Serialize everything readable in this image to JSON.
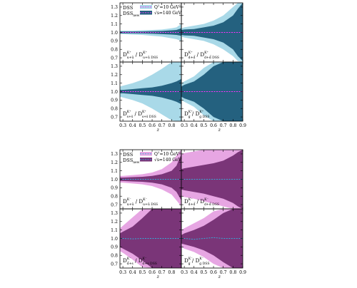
{
  "chart_data": [
    {
      "type": "area",
      "x_ticks": [
        "0.3",
        "0.4",
        "0.5",
        "0.6",
        "0.7",
        "0.8",
        "0.9"
      ],
      "y_ticks": [
        "0.7",
        "0.8",
        "0.9",
        "1.0",
        "1.1",
        "1.2",
        "1.3"
      ],
      "ylim": [
        0.65,
        1.35
      ],
      "xlim": [
        0.27,
        0.9
      ],
      "xlabel": "z",
      "legend": {
        "placement": "top-left",
        "label_dss": "DSS",
        "label_dssnew": "DSS",
        "label_dssnew_sub": "new",
        "entry_light": "Q",
        "entry_light_sup": "2",
        "entry_light_rest": "=10 GeV",
        "entry_light_rest_sup": "2",
        "entry_dark": "√s=140 GeV"
      },
      "colors": {
        "light": "#a9d9e8",
        "dark": "#24617f",
        "line": "#ff33ff"
      },
      "panels": [
        {
          "label_lead": "D",
          "label_sup": "K⁺",
          "label_sub": "u+ū",
          "label_sep": " / D",
          "label_sup2": "K⁺",
          "label_sub2": "u+ū DSS",
          "x": [
            0.27,
            0.3,
            0.4,
            0.5,
            0.6,
            0.7,
            0.8,
            0.85,
            0.9
          ],
          "light_upper": [
            1.02,
            1.02,
            1.02,
            1.025,
            1.03,
            1.035,
            1.05,
            1.06,
            1.1
          ],
          "light_lower": [
            0.98,
            0.98,
            0.975,
            0.97,
            0.96,
            0.95,
            0.93,
            0.92,
            0.9
          ],
          "dark_upper": [
            1.01,
            1.01,
            1.01,
            1.012,
            1.015,
            1.018,
            1.025,
            1.03,
            1.05
          ],
          "dark_lower": [
            0.99,
            0.99,
            0.99,
            0.988,
            0.985,
            0.98,
            0.975,
            0.97,
            0.96
          ],
          "central": [
            1.0,
            1.0,
            1.0,
            1.0,
            1.0,
            1.0,
            1.0,
            1.0,
            1.0
          ]
        },
        {
          "label_lead": "D",
          "label_sup": "K⁺",
          "label_sub": "d+d̅",
          "label_sep": " / D",
          "label_sup2": "K⁺",
          "label_sub2": "d+d̅ DSS",
          "x": [
            0.27,
            0.3,
            0.4,
            0.5,
            0.6,
            0.7,
            0.8,
            0.85,
            0.9
          ],
          "light_upper": [
            1.05,
            1.06,
            1.08,
            1.1,
            1.14,
            1.2,
            1.3,
            1.35,
            1.35
          ],
          "light_lower": [
            0.95,
            0.94,
            0.92,
            0.9,
            0.86,
            0.8,
            0.72,
            0.66,
            0.65
          ],
          "dark_upper": [
            1.03,
            1.035,
            1.04,
            1.06,
            1.08,
            1.12,
            1.2,
            1.28,
            1.35
          ],
          "dark_lower": [
            0.97,
            0.965,
            0.96,
            0.94,
            0.92,
            0.88,
            0.8,
            0.72,
            0.66
          ],
          "central": [
            1.0,
            1.0,
            1.0,
            1.0,
            1.0,
            1.0,
            1.0,
            1.0,
            1.0
          ]
        },
        {
          "label_lead": "D",
          "label_sup": "K⁺",
          "label_sub": "s+s̅",
          "label_sep": " / D",
          "label_sup2": "K⁺",
          "label_sub2": "s+s̅ DSS",
          "x": [
            0.27,
            0.3,
            0.4,
            0.5,
            0.6,
            0.7,
            0.8,
            0.85,
            0.9
          ],
          "light_upper": [
            1.06,
            1.07,
            1.1,
            1.14,
            1.2,
            1.27,
            1.35,
            1.35,
            1.35
          ],
          "light_lower": [
            0.94,
            0.93,
            0.9,
            0.86,
            0.8,
            0.73,
            0.66,
            0.65,
            0.65
          ],
          "dark_upper": [
            1.02,
            1.02,
            1.03,
            1.04,
            1.05,
            1.07,
            1.1,
            1.12,
            1.15
          ],
          "dark_lower": [
            0.98,
            0.98,
            0.97,
            0.96,
            0.95,
            0.93,
            0.9,
            0.88,
            0.85
          ],
          "central": [
            1.0,
            1.0,
            1.0,
            1.0,
            1.0,
            1.0,
            1.0,
            1.0,
            1.0
          ]
        },
        {
          "label_lead": "D",
          "label_sup": "K⁺",
          "label_sub": "g",
          "label_sep": " / D",
          "label_sup2": "K⁺",
          "label_sub2": "g DSS",
          "x": [
            0.27,
            0.3,
            0.4,
            0.5,
            0.6,
            0.7,
            0.8,
            0.85,
            0.9
          ],
          "light_upper": [
            1.1,
            1.12,
            1.18,
            1.28,
            1.35,
            1.35,
            1.35,
            1.35,
            1.35
          ],
          "light_lower": [
            0.9,
            0.88,
            0.82,
            0.72,
            0.65,
            0.65,
            0.65,
            0.65,
            0.65
          ],
          "dark_upper": [
            1.06,
            1.08,
            1.12,
            1.2,
            1.3,
            1.35,
            1.35,
            1.35,
            1.35
          ],
          "dark_lower": [
            0.94,
            0.92,
            0.88,
            0.8,
            0.7,
            0.65,
            0.65,
            0.65,
            0.65
          ],
          "central": [
            1.0,
            1.0,
            1.0,
            1.0,
            1.0,
            1.0,
            1.0,
            1.0,
            1.0
          ]
        }
      ]
    },
    {
      "type": "area",
      "x_ticks": [
        "0.3",
        "0.4",
        "0.5",
        "0.6",
        "0.7",
        "0.8",
        "0.9"
      ],
      "y_ticks": [
        "0.7",
        "0.8",
        "0.9",
        "1.0",
        "1.1",
        "1.2",
        "1.3"
      ],
      "ylim": [
        0.65,
        1.35
      ],
      "xlim": [
        0.27,
        0.9
      ],
      "xlabel": "z",
      "legend": {
        "placement": "top-left",
        "label_dss": "DSS",
        "label_dssnew": "DSS",
        "label_dssnew_sub": "new",
        "entry_light": "Q",
        "entry_light_sup": "2",
        "entry_light_rest": "=10 GeV",
        "entry_light_rest_sup": "2",
        "entry_dark": "√s=140 GeV"
      },
      "colors": {
        "light": "#e7a6e3",
        "dark": "#7a3578",
        "line": "#35a9d6"
      },
      "panels": [
        {
          "label_lead": "D",
          "label_sup": "K⁻",
          "label_sub": "u+ū",
          "label_sep": " / D",
          "label_sup2": "K⁻",
          "label_sub2": "u+ū DSS",
          "x": [
            0.27,
            0.3,
            0.4,
            0.5,
            0.6,
            0.7,
            0.8,
            0.85,
            0.9
          ],
          "light_upper": [
            1.04,
            1.04,
            1.05,
            1.06,
            1.08,
            1.12,
            1.2,
            1.28,
            1.35
          ],
          "light_lower": [
            0.96,
            0.96,
            0.95,
            0.94,
            0.92,
            0.88,
            0.82,
            0.75,
            0.68
          ],
          "dark_upper": [
            1.02,
            1.02,
            1.025,
            1.03,
            1.04,
            1.06,
            1.1,
            1.16,
            1.3
          ],
          "dark_lower": [
            0.98,
            0.98,
            0.975,
            0.97,
            0.96,
            0.94,
            0.9,
            0.85,
            0.75
          ],
          "central": [
            1.0,
            1.0,
            1.0,
            1.0,
            1.0,
            1.0,
            1.0,
            1.0,
            1.0
          ]
        },
        {
          "label_lead": "D",
          "label_sup": "K⁻",
          "label_sub": "d+d̅",
          "label_sep": " / D",
          "label_sup2": "K⁻",
          "label_sub2": "d+d̅ DSS",
          "x": [
            0.27,
            0.3,
            0.4,
            0.5,
            0.6,
            0.7,
            0.8,
            0.85,
            0.9
          ],
          "light_upper": [
            1.3,
            1.31,
            1.33,
            1.35,
            1.35,
            1.35,
            1.35,
            1.35,
            1.35
          ],
          "light_lower": [
            0.8,
            0.79,
            0.77,
            0.74,
            0.71,
            0.68,
            0.65,
            0.65,
            0.65
          ],
          "dark_upper": [
            1.12,
            1.13,
            1.15,
            1.17,
            1.19,
            1.22,
            1.28,
            1.32,
            1.35
          ],
          "dark_lower": [
            0.88,
            0.87,
            0.85,
            0.83,
            0.8,
            0.77,
            0.72,
            0.68,
            0.65
          ],
          "central": [
            1.0,
            1.0,
            1.0,
            1.0,
            1.0,
            1.0,
            1.0,
            1.0,
            1.0
          ]
        },
        {
          "label_lead": "D",
          "label_sup": "K⁻",
          "label_sub": "d̅+s",
          "label_sep": " / D",
          "label_sup2": "K⁻",
          "label_sub2": "d̅+s DSS",
          "x": [
            0.27,
            0.3,
            0.4,
            0.5,
            0.6,
            0.7,
            0.8,
            0.85,
            0.9
          ],
          "light_upper": [
            1.12,
            1.15,
            1.25,
            1.35,
            1.35,
            1.35,
            1.35,
            1.35,
            1.35
          ],
          "light_lower": [
            0.85,
            0.83,
            0.75,
            0.66,
            0.65,
            0.65,
            0.65,
            0.65,
            0.65
          ],
          "dark_upper": [
            1.06,
            1.08,
            1.14,
            1.24,
            1.35,
            1.35,
            1.35,
            1.35,
            1.35
          ],
          "dark_lower": [
            0.9,
            0.88,
            0.82,
            0.74,
            0.65,
            0.65,
            0.65,
            0.65,
            0.65
          ],
          "central": [
            1.0,
            1.0,
            0.995,
            1.0,
            1.0,
            1.0,
            1.0,
            1.0,
            1.0
          ]
        },
        {
          "label_lead": "D",
          "label_sup": "K⁻",
          "label_sub": "g",
          "label_sep": " / D",
          "label_sup2": "K⁻",
          "label_sub2": "g DSS",
          "x": [
            0.27,
            0.3,
            0.4,
            0.5,
            0.6,
            0.7,
            0.8,
            0.85,
            0.9
          ],
          "light_upper": [
            1.1,
            1.12,
            1.18,
            1.24,
            1.32,
            1.35,
            1.35,
            1.35,
            1.35
          ],
          "light_lower": [
            0.9,
            0.88,
            0.84,
            0.78,
            0.7,
            0.65,
            0.65,
            0.65,
            0.65
          ],
          "dark_upper": [
            1.04,
            1.06,
            1.1,
            1.15,
            1.22,
            1.3,
            1.35,
            1.35,
            1.35
          ],
          "dark_lower": [
            0.94,
            0.93,
            0.9,
            0.86,
            0.8,
            0.72,
            0.65,
            0.65,
            0.65
          ],
          "central": [
            1.0,
            1.0,
            0.99,
            1.0,
            1.01,
            1.0,
            1.0,
            1.0,
            1.0
          ]
        }
      ]
    }
  ]
}
